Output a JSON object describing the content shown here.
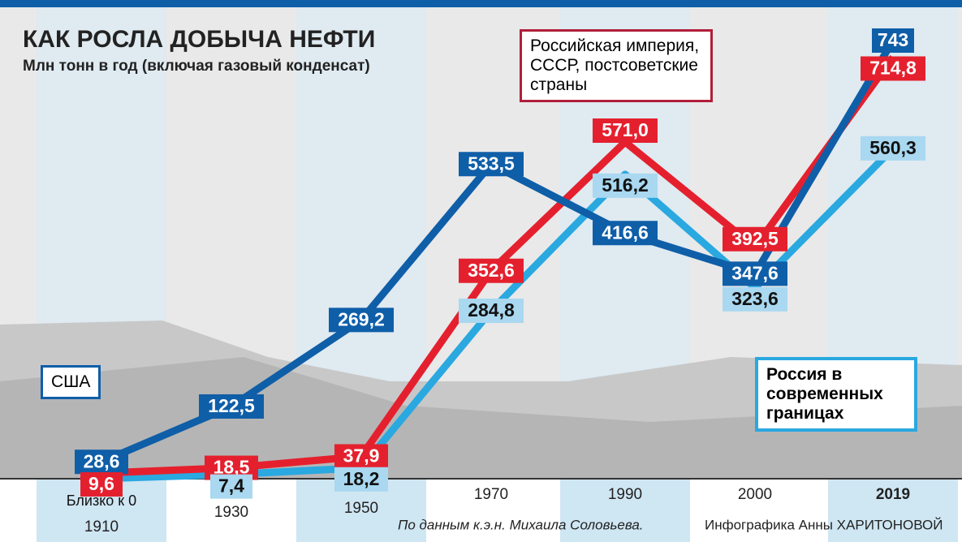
{
  "chart_data": {
    "type": "line",
    "title": "КАК РОСЛА ДОБЫЧА НЕФТИ",
    "subtitle": "Млн тонн в год (включая газовый конденсат)",
    "categories": [
      "1910",
      "1930",
      "1950",
      "1970",
      "1990",
      "2000",
      "2019"
    ],
    "series": [
      {
        "name": "США",
        "color": "#0f5ea8",
        "values": [
          28.6,
          122.5,
          269.2,
          533.5,
          416.6,
          347.6,
          743
        ],
        "value_labels": [
          "28,6",
          "122,5",
          "269,2",
          "533,5",
          "416,6",
          "347,6",
          "743"
        ]
      },
      {
        "name": "Российская империя, СССР, постсоветские страны",
        "color": "#e5202e",
        "values": [
          9.6,
          18.5,
          37.9,
          352.6,
          571.0,
          392.5,
          714.8
        ],
        "value_labels": [
          "9,6",
          "18,5",
          "37,9",
          "352,6",
          "571,0",
          "392,5",
          "714,8"
        ]
      },
      {
        "name": "Россия в современных границах",
        "color": "#2aa8e0",
        "values": [
          0,
          7.4,
          18.2,
          284.8,
          516.2,
          323.6,
          560.3
        ],
        "value_labels": [
          "Близко к 0",
          "7,4",
          "18,2",
          "284,8",
          "516,2",
          "323,6",
          "560,3"
        ]
      }
    ],
    "source": "По данным к.э.н. Михаила Соловьева.",
    "credit": "Инфографика Анны ХАРИТОНОВОЙ"
  }
}
